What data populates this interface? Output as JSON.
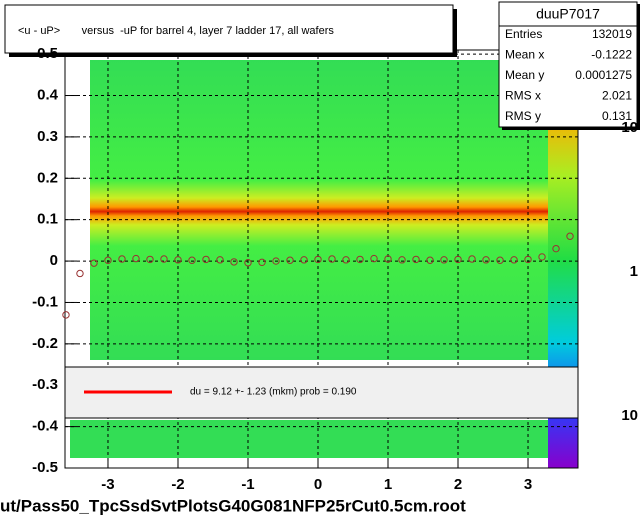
{
  "chart_data": {
    "type": "scatter",
    "title": "<u - uP>       versus  -uP for barrel 4, layer 7 ladder 17, all wafers",
    "x_label": "ut/Pass50_TpcSsdSvtPlotsG40G081NFP25rCut0.5cm.root",
    "xlim": [
      -3.614,
      3.714
    ],
    "ylim": [
      -0.5,
      0.51
    ],
    "xticks": [
      -3,
      -2,
      -1,
      0,
      1,
      2,
      3
    ],
    "yticks": [
      -0.5,
      -0.4,
      -0.3,
      -0.2,
      -0.1,
      0,
      0.1,
      0.2,
      0.3,
      0.4,
      0.5
    ],
    "grid": true,
    "series": [
      {
        "color": "#993333",
        "x": [
          -3.6,
          -3.4,
          -3.2,
          -3.0,
          -2.8,
          -2.6,
          -2.4,
          -2.2,
          -2.0,
          -1.8,
          -1.6,
          -1.4,
          -1.2,
          -1.0,
          -0.8,
          -0.6,
          -0.4,
          -0.2,
          0.0,
          0.2,
          0.4,
          0.6,
          0.8,
          1.0,
          1.2,
          1.4,
          1.6,
          1.8,
          2.0,
          2.2,
          2.4,
          2.6,
          2.8,
          3.0,
          3.2,
          3.4,
          3.6
        ],
        "values": [
          -0.13,
          -0.03,
          -0.005,
          0.002,
          0.005,
          0.006,
          0.004,
          0.005,
          0.003,
          0.002,
          0.004,
          0.003,
          -0.002,
          -0.004,
          -0.003,
          0.0,
          0.002,
          0.003,
          0.004,
          0.005,
          0.003,
          0.004,
          0.006,
          0.005,
          0.003,
          0.004,
          0.002,
          0.003,
          0.004,
          0.005,
          0.003,
          0.002,
          0.003,
          0.004,
          0.01,
          0.03,
          0.06
        ]
      }
    ],
    "fit_legend": {
      "text": "du =    9.12 +-  1.23 (mkm) prob = 0.190",
      "color": "#ff0000"
    },
    "stats": {
      "name": "duuP7017",
      "rows": [
        {
          "label": "Entries",
          "value": 132019
        },
        {
          "label": "Mean x",
          "value": -0.1222
        },
        {
          "label": "Mean y",
          "value": 0.0001275
        },
        {
          "label": "RMS x",
          "value": 2.021
        },
        {
          "label": "RMS y",
          "value": 0.131
        }
      ]
    },
    "colorbar_labels": [
      10,
      1,
      10
    ]
  }
}
